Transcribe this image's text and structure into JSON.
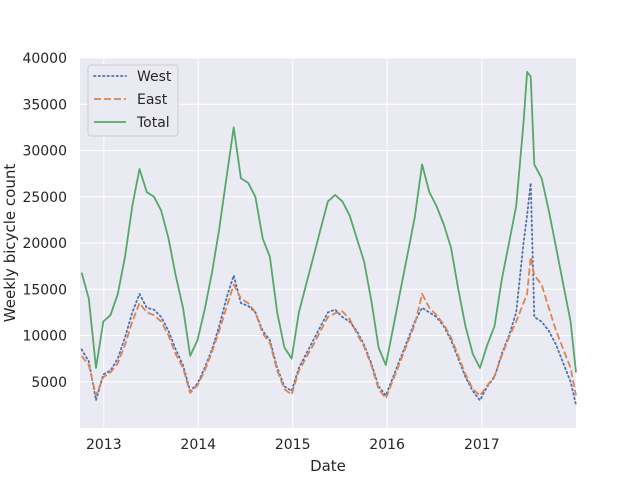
{
  "chart_data": {
    "type": "line",
    "title": "",
    "xlabel": "Date",
    "ylabel": "Weekly bicycle count",
    "x_tick_labels": [
      "2013",
      "2014",
      "2015",
      "2016",
      "2017"
    ],
    "y_tick_labels": [
      "5000",
      "10000",
      "15000",
      "20000",
      "25000",
      "30000",
      "35000",
      "40000"
    ],
    "x_ticks": [
      "2013-01-01",
      "2014-01-01",
      "2015-01-01",
      "2016-01-01",
      "2017-01-01"
    ],
    "y_ticks": [
      5000,
      10000,
      15000,
      20000,
      25000,
      30000,
      35000,
      40000
    ],
    "xlim": [
      "2012-10-01",
      "2017-12-31"
    ],
    "ylim": [
      0,
      40000
    ],
    "grid": true,
    "legend_position": "top-left",
    "colors": {
      "background": "#eaeaf2",
      "grid": "#ffffff",
      "text": "#262626"
    },
    "x": [
      "2012-10-07",
      "2012-11-04",
      "2012-12-02",
      "2012-12-30",
      "2013-01-27",
      "2013-02-24",
      "2013-03-24",
      "2013-04-21",
      "2013-05-19",
      "2013-06-16",
      "2013-07-14",
      "2013-08-11",
      "2013-09-08",
      "2013-10-06",
      "2013-11-03",
      "2013-12-01",
      "2013-12-29",
      "2014-01-26",
      "2014-02-23",
      "2014-03-23",
      "2014-04-20",
      "2014-05-18",
      "2014-06-15",
      "2014-07-13",
      "2014-08-10",
      "2014-09-07",
      "2014-10-05",
      "2014-11-02",
      "2014-11-30",
      "2014-12-28",
      "2015-01-25",
      "2015-02-22",
      "2015-03-22",
      "2015-04-19",
      "2015-05-17",
      "2015-06-14",
      "2015-07-12",
      "2015-08-09",
      "2015-09-06",
      "2015-10-04",
      "2015-11-01",
      "2015-11-29",
      "2015-12-27",
      "2016-01-24",
      "2016-02-21",
      "2016-03-20",
      "2016-04-17",
      "2016-05-15",
      "2016-06-12",
      "2016-07-10",
      "2016-08-07",
      "2016-09-04",
      "2016-10-02",
      "2016-10-30",
      "2016-11-27",
      "2016-12-25",
      "2017-01-22",
      "2017-02-19",
      "2017-03-19",
      "2017-04-16",
      "2017-05-14",
      "2017-06-11",
      "2017-06-25",
      "2017-07-09",
      "2017-07-23",
      "2017-08-20",
      "2017-09-17",
      "2017-10-15",
      "2017-11-12",
      "2017-12-10",
      "2017-12-31"
    ],
    "series": [
      {
        "name": "West",
        "line_style": "dotted",
        "color": "#4c72b0",
        "values": [
          8500,
          7200,
          3000,
          5800,
          6200,
          7500,
          9800,
          12500,
          14500,
          13000,
          12800,
          12000,
          10500,
          8500,
          6800,
          4000,
          4800,
          6500,
          8500,
          11000,
          14000,
          16500,
          13500,
          13200,
          12500,
          10500,
          9500,
          6500,
          4500,
          4000,
          6500,
          8000,
          9500,
          11000,
          12500,
          12800,
          12000,
          11500,
          10500,
          9000,
          7000,
          4500,
          3500,
          5500,
          7500,
          9500,
          11500,
          13000,
          12500,
          12000,
          11000,
          9500,
          7500,
          5500,
          4000,
          3000,
          4500,
          5500,
          8000,
          10000,
          12500,
          20000,
          23000,
          26500,
          12000,
          11500,
          10500,
          9000,
          7000,
          5000,
          2500
        ]
      },
      {
        "name": "East",
        "line_style": "dashed",
        "color": "#dd8452",
        "values": [
          7800,
          6800,
          3500,
          5500,
          6000,
          7000,
          9000,
          11500,
          13500,
          12500,
          12200,
          11500,
          10000,
          8000,
          6500,
          3800,
          4600,
          6200,
          8200,
          10500,
          13000,
          15500,
          14000,
          13500,
          12500,
          10200,
          9200,
          6200,
          4200,
          3600,
          6200,
          7600,
          9000,
          10500,
          12000,
          12400,
          12600,
          11800,
          10200,
          8800,
          6800,
          4200,
          3200,
          5200,
          7200,
          9200,
          11200,
          14500,
          13000,
          12200,
          11200,
          9800,
          7800,
          5800,
          4200,
          3500,
          4600,
          5600,
          7800,
          9800,
          11500,
          13500,
          14500,
          18500,
          16500,
          15500,
          13000,
          10500,
          8500,
          6500,
          3500
        ]
      },
      {
        "name": "Total",
        "line_style": "solid",
        "color": "#55a868",
        "values": [
          16800,
          14000,
          6500,
          11500,
          12200,
          14500,
          18500,
          24000,
          28000,
          25500,
          25000,
          23500,
          20500,
          16500,
          13000,
          7800,
          9500,
          12800,
          16800,
          21500,
          27000,
          32500,
          27000,
          26500,
          25000,
          20500,
          18500,
          12500,
          8700,
          7500,
          12500,
          15500,
          18500,
          21500,
          24500,
          25200,
          24500,
          23000,
          20500,
          18000,
          13800,
          8700,
          6800,
          10800,
          14800,
          18800,
          22800,
          28500,
          25500,
          24000,
          22000,
          19500,
          15000,
          11000,
          8000,
          6500,
          9000,
          11000,
          16000,
          20000,
          24000,
          33000,
          38500,
          38000,
          28500,
          27000,
          23500,
          19500,
          15500,
          11500,
          6000
        ]
      }
    ]
  }
}
